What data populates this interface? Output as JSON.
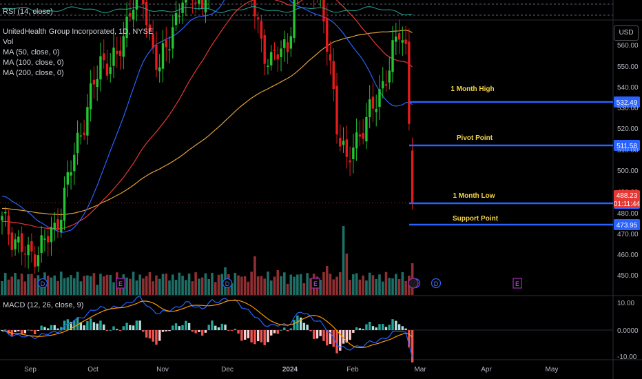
{
  "rsi_panel": {
    "label": "RSI (14, close)"
  },
  "main_legend": {
    "title": "UnitedHealth Group Incorporated, 1D, NYSE",
    "lines": [
      "Vol",
      "MA (50, close, 0)",
      "MA (100, close, 0)",
      "MA (200, close, 0)"
    ]
  },
  "macd_panel": {
    "label": "MACD (12, 26, close, 9)"
  },
  "currency": "USD",
  "colors": {
    "up": "#26a69a",
    "up_candle": "#22c532",
    "down": "#ef5350",
    "down_candle": "#e41b1b",
    "ma50": "#2962ff",
    "ma100": "#e53935",
    "ma200": "#e0a23c",
    "level_line": "#2962ff",
    "level_text": "#f5d547",
    "rsi": "#26a69a",
    "macd": "#2962ff",
    "signal": "#ff9800"
  },
  "levels": [
    {
      "label": "1 Month High",
      "price": "532.49"
    },
    {
      "label": "Pivot Point",
      "price": "511.58"
    },
    {
      "label": "1 Month Low",
      "price": "484.15"
    },
    {
      "label": "Support Point",
      "price": "473.95"
    }
  ],
  "last_price": {
    "price": "488.23",
    "countdown": "01:11:44"
  },
  "price_axis": [
    "560.00",
    "550.00",
    "540.00",
    "530.00",
    "520.00",
    "510.00",
    "500.00",
    "490.00",
    "480.00",
    "470.00",
    "460.00",
    "450.00"
  ],
  "macd_axis": [
    "10.00",
    "0.0000",
    "-10.00"
  ],
  "time_axis": [
    "Sep",
    "Oct",
    "Nov",
    "Dec",
    "2024",
    "Feb",
    "Mar",
    "Apr",
    "May"
  ],
  "chart_data": {
    "type": "candlestick",
    "symbol": "UnitedHealth Group Incorporated",
    "interval": "1D",
    "exchange": "NYSE",
    "ylim": [
      445,
      563
    ],
    "anchors": [
      [
        0,
        484
      ],
      [
        4,
        480
      ],
      [
        8,
        476
      ],
      [
        11,
        478
      ],
      [
        16,
        482
      ],
      [
        19,
        490
      ],
      [
        23,
        502
      ],
      [
        27,
        512
      ],
      [
        30,
        520
      ],
      [
        35,
        520
      ],
      [
        39,
        532
      ],
      [
        42,
        538
      ],
      [
        45,
        526
      ],
      [
        48,
        518
      ],
      [
        52,
        528
      ],
      [
        57,
        538
      ],
      [
        61,
        532
      ],
      [
        64,
        544
      ],
      [
        68,
        550
      ],
      [
        72,
        548
      ],
      [
        75,
        538
      ],
      [
        79,
        524
      ],
      [
        82,
        520
      ],
      [
        87,
        524
      ],
      [
        89,
        534
      ],
      [
        91,
        544
      ],
      [
        94,
        540
      ],
      [
        97,
        532
      ],
      [
        100,
        520
      ],
      [
        102,
        506
      ],
      [
        105,
        496
      ],
      [
        107,
        502
      ],
      [
        111,
        506
      ],
      [
        114,
        512
      ],
      [
        118,
        518
      ],
      [
        121,
        528
      ],
      [
        123,
        524
      ],
      [
        124,
        506
      ],
      [
        125,
        488
      ]
    ],
    "events": [
      "D",
      "E",
      "D",
      "E",
      "D",
      "D",
      "E"
    ]
  }
}
